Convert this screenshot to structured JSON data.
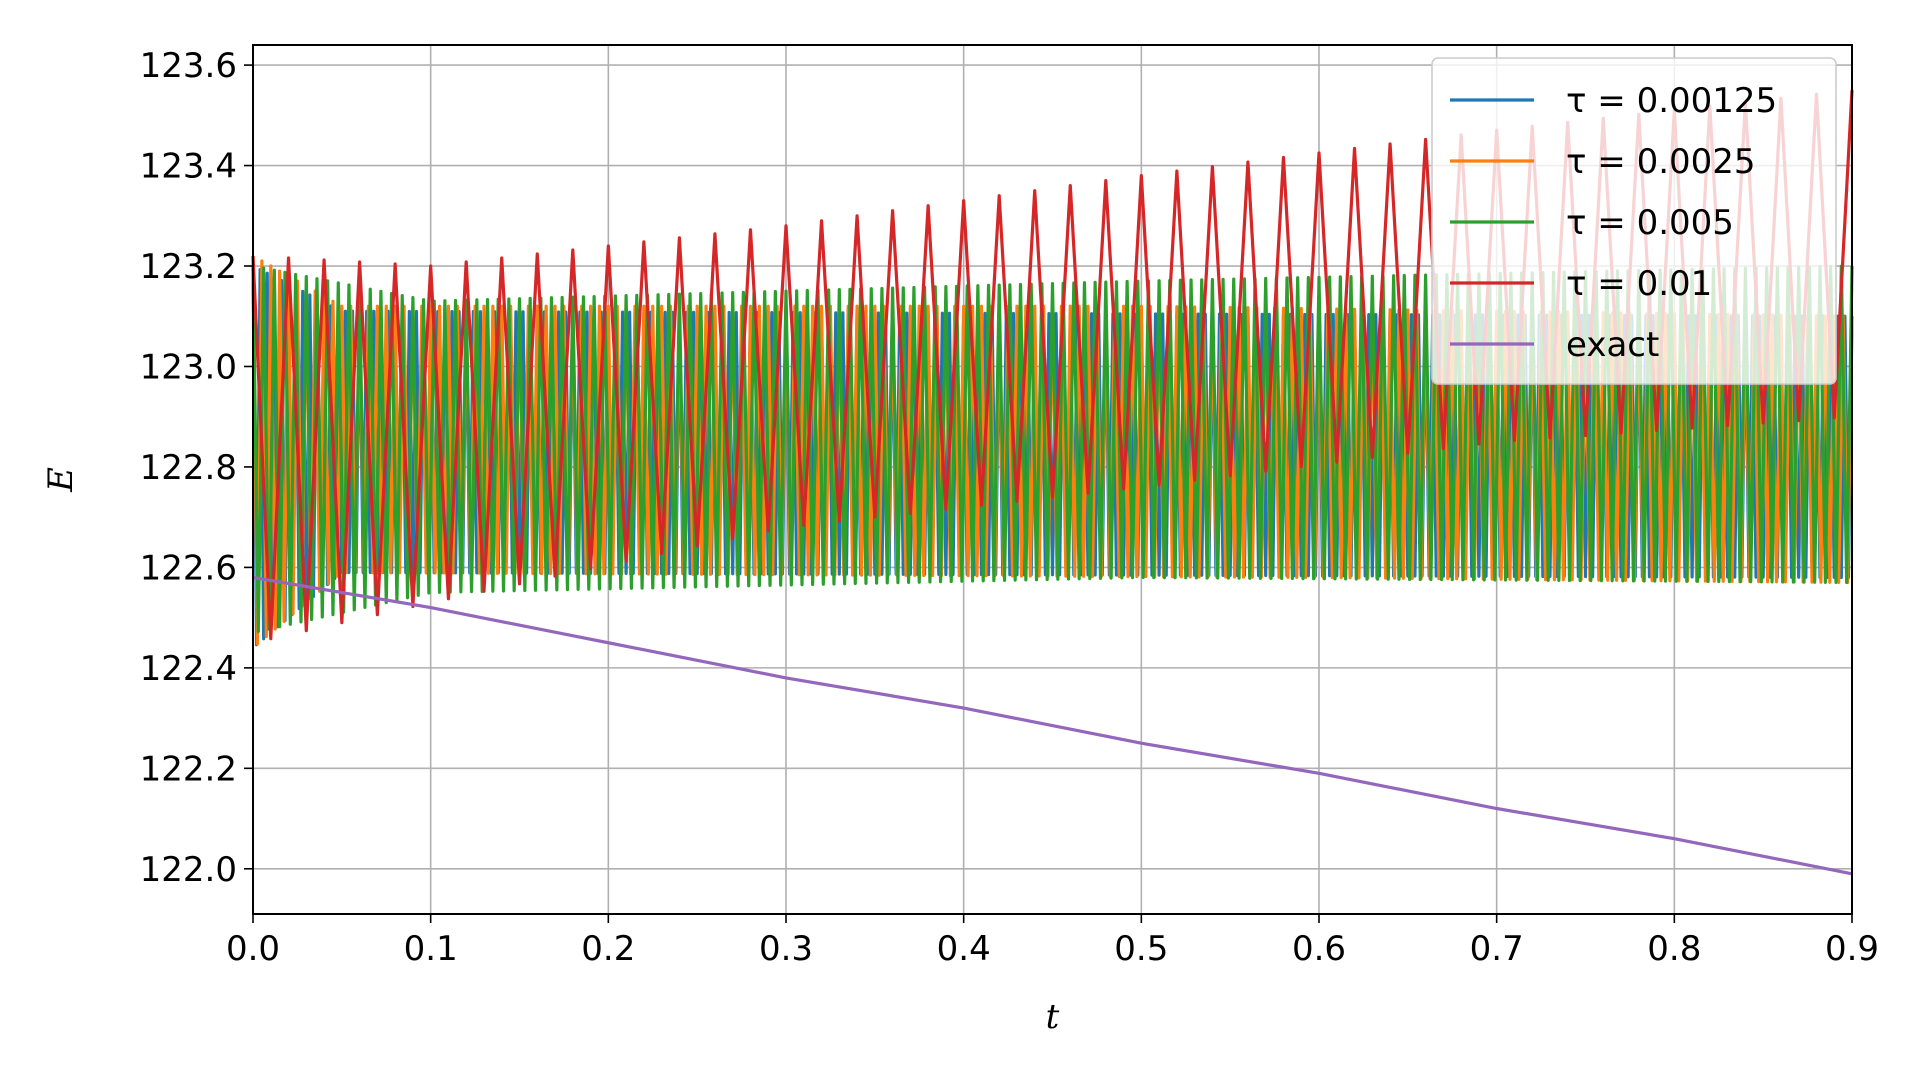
{
  "chart_data": {
    "type": "line",
    "title": "",
    "xlabel": "t",
    "ylabel": "E",
    "xlim": [
      0.0,
      0.9
    ],
    "ylim": [
      121.91,
      123.64
    ],
    "xticks": [
      "0.0",
      "0.1",
      "0.2",
      "0.3",
      "0.4",
      "0.5",
      "0.6",
      "0.7",
      "0.8",
      "0.9"
    ],
    "yticks": [
      "122.0",
      "122.2",
      "122.4",
      "122.6",
      "122.8",
      "123.0",
      "123.2",
      "123.4",
      "123.6"
    ],
    "grid": true,
    "legend_position": "top-right",
    "series": [
      {
        "name": "τ = 0.00125",
        "color": "#1f77b4",
        "description": "fast oscillation",
        "oscillation_period": 0.004,
        "upper_envelope": [
          [
            0.0,
            123.2
          ],
          [
            0.05,
            123.11
          ],
          [
            0.9,
            123.1
          ]
        ],
        "lower_envelope": [
          [
            0.0,
            122.44
          ],
          [
            0.05,
            122.59
          ],
          [
            0.9,
            122.58
          ]
        ]
      },
      {
        "name": "τ = 0.0025",
        "color": "#ff7f0e",
        "oscillation_period": 0.005,
        "upper_envelope": [
          [
            0.0,
            123.22
          ],
          [
            0.05,
            123.12
          ],
          [
            0.5,
            123.12
          ],
          [
            0.9,
            123.1
          ]
        ],
        "lower_envelope": [
          [
            0.0,
            122.44
          ],
          [
            0.05,
            122.59
          ],
          [
            0.6,
            122.58
          ],
          [
            0.9,
            122.57
          ]
        ]
      },
      {
        "name": "τ = 0.005",
        "color": "#2ca02c",
        "oscillation_period": 0.006,
        "upper_envelope": [
          [
            0.0,
            123.2
          ],
          [
            0.1,
            123.13
          ],
          [
            0.5,
            123.17
          ],
          [
            0.9,
            123.2
          ]
        ],
        "lower_envelope": [
          [
            0.0,
            122.47
          ],
          [
            0.1,
            122.55
          ],
          [
            0.5,
            122.58
          ],
          [
            0.9,
            122.57
          ]
        ]
      },
      {
        "name": "τ = 0.01",
        "color": "#d62728",
        "oscillation_period": 0.02,
        "upper_envelope": [
          [
            0.0,
            123.22
          ],
          [
            0.1,
            123.2
          ],
          [
            0.3,
            123.28
          ],
          [
            0.5,
            123.38
          ],
          [
            0.7,
            123.47
          ],
          [
            0.9,
            123.55
          ]
        ],
        "lower_envelope": [
          [
            0.0,
            122.45
          ],
          [
            0.1,
            122.53
          ],
          [
            0.3,
            122.68
          ],
          [
            0.5,
            122.76
          ],
          [
            0.7,
            122.85
          ],
          [
            0.9,
            122.9
          ]
        ]
      },
      {
        "name": "exact",
        "color": "#9467bd",
        "points": [
          [
            0.0,
            122.58
          ],
          [
            0.1,
            122.52
          ],
          [
            0.2,
            122.45
          ],
          [
            0.3,
            122.38
          ],
          [
            0.4,
            122.32
          ],
          [
            0.5,
            122.25
          ],
          [
            0.6,
            122.19
          ],
          [
            0.7,
            122.12
          ],
          [
            0.8,
            122.06
          ],
          [
            0.9,
            121.99
          ]
        ]
      }
    ]
  }
}
